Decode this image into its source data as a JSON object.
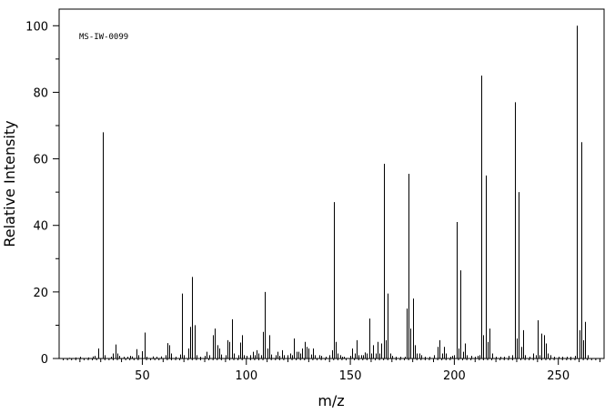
{
  "chart_data": {
    "type": "bar",
    "annotation": "MS-IW-0099",
    "xlabel": "m/z",
    "ylabel": "Relative Intensity",
    "xlim": [
      10,
      272
    ],
    "ylim": [
      0,
      105
    ],
    "x_ticks": [
      50,
      100,
      150,
      200,
      250
    ],
    "x_tick_labels": [
      "50",
      "100",
      "150",
      "200",
      "250"
    ],
    "y_ticks": [
      0,
      20,
      40,
      60,
      80,
      100
    ],
    "y_tick_labels": [
      "0",
      "20",
      "40",
      "60",
      "80",
      "100"
    ],
    "grid": false,
    "legend": "none",
    "peaks": [
      [
        15,
        0.2
      ],
      [
        18,
        0.3
      ],
      [
        20,
        0.5
      ],
      [
        24,
        0.3
      ],
      [
        26,
        0.6
      ],
      [
        27,
        0.8
      ],
      [
        29,
        3.0
      ],
      [
        31,
        68.0
      ],
      [
        32,
        1.0
      ],
      [
        35,
        0.5
      ],
      [
        36,
        1.5
      ],
      [
        37,
        4.2
      ],
      [
        38,
        1.5
      ],
      [
        39,
        0.8
      ],
      [
        41,
        0.5
      ],
      [
        43,
        0.5
      ],
      [
        44,
        0.8
      ],
      [
        45,
        0.6
      ],
      [
        47,
        2.8
      ],
      [
        48,
        1.0
      ],
      [
        50,
        2.2
      ],
      [
        51,
        7.8
      ],
      [
        52,
        0.5
      ],
      [
        55,
        0.6
      ],
      [
        57,
        0.5
      ],
      [
        59,
        0.6
      ],
      [
        61,
        1.0
      ],
      [
        62,
        4.6
      ],
      [
        63,
        4.0
      ],
      [
        64,
        1.5
      ],
      [
        66,
        0.5
      ],
      [
        68,
        1.2
      ],
      [
        69,
        19.5
      ],
      [
        70,
        1.0
      ],
      [
        72,
        3.0
      ],
      [
        73,
        9.5
      ],
      [
        74,
        24.5
      ],
      [
        75,
        10.0
      ],
      [
        76,
        1.0
      ],
      [
        78,
        0.5
      ],
      [
        80,
        0.8
      ],
      [
        81,
        2.0
      ],
      [
        82,
        1.0
      ],
      [
        84,
        7.0
      ],
      [
        85,
        9.0
      ],
      [
        86,
        4.0
      ],
      [
        87,
        3.0
      ],
      [
        88,
        1.2
      ],
      [
        90,
        1.0
      ],
      [
        91,
        5.5
      ],
      [
        92,
        5.0
      ],
      [
        93,
        11.8
      ],
      [
        94,
        1.5
      ],
      [
        96,
        1.0
      ],
      [
        97,
        4.8
      ],
      [
        98,
        7.0
      ],
      [
        99,
        1.0
      ],
      [
        100,
        0.8
      ],
      [
        102,
        1.0
      ],
      [
        103,
        2.0
      ],
      [
        104,
        1.0
      ],
      [
        105,
        2.5
      ],
      [
        106,
        1.5
      ],
      [
        107,
        1.0
      ],
      [
        108,
        8.0
      ],
      [
        109,
        20.0
      ],
      [
        110,
        3.0
      ],
      [
        111,
        7.0
      ],
      [
        112,
        1.2
      ],
      [
        114,
        1.0
      ],
      [
        115,
        2.0
      ],
      [
        116,
        0.8
      ],
      [
        117,
        2.5
      ],
      [
        118,
        1.0
      ],
      [
        120,
        1.0
      ],
      [
        121,
        1.5
      ],
      [
        122,
        1.0
      ],
      [
        123,
        6.0
      ],
      [
        124,
        2.0
      ],
      [
        125,
        2.0
      ],
      [
        126,
        1.5
      ],
      [
        127,
        3.0
      ],
      [
        128,
        5.0
      ],
      [
        129,
        3.5
      ],
      [
        130,
        3.0
      ],
      [
        131,
        1.2
      ],
      [
        132,
        3.0
      ],
      [
        133,
        1.0
      ],
      [
        135,
        1.0
      ],
      [
        136,
        0.8
      ],
      [
        138,
        0.5
      ],
      [
        140,
        1.0
      ],
      [
        141,
        2.5
      ],
      [
        142,
        47.0
      ],
      [
        143,
        5.0
      ],
      [
        144,
        1.5
      ],
      [
        145,
        1.0
      ],
      [
        146,
        0.5
      ],
      [
        147,
        0.5
      ],
      [
        150,
        0.8
      ],
      [
        151,
        3.0
      ],
      [
        152,
        1.5
      ],
      [
        153,
        5.5
      ],
      [
        154,
        1.0
      ],
      [
        155,
        1.0
      ],
      [
        156,
        1.0
      ],
      [
        157,
        1.8
      ],
      [
        158,
        1.5
      ],
      [
        159,
        12.0
      ],
      [
        160,
        1.5
      ],
      [
        161,
        4.0
      ],
      [
        162,
        1.5
      ],
      [
        163,
        5.0
      ],
      [
        164,
        1.5
      ],
      [
        165,
        4.5
      ],
      [
        166,
        58.5
      ],
      [
        167,
        5.5
      ],
      [
        168,
        19.5
      ],
      [
        169,
        1.5
      ],
      [
        170,
        0.8
      ],
      [
        172,
        0.5
      ],
      [
        174,
        0.5
      ],
      [
        176,
        0.5
      ],
      [
        177,
        15.0
      ],
      [
        178,
        55.5
      ],
      [
        179,
        9.0
      ],
      [
        180,
        18.0
      ],
      [
        181,
        4.0
      ],
      [
        182,
        1.5
      ],
      [
        183,
        1.5
      ],
      [
        184,
        1.0
      ],
      [
        186,
        0.5
      ],
      [
        188,
        0.5
      ],
      [
        190,
        1.0
      ],
      [
        192,
        3.5
      ],
      [
        193,
        5.5
      ],
      [
        194,
        1.5
      ],
      [
        195,
        3.5
      ],
      [
        196,
        1.5
      ],
      [
        198,
        0.5
      ],
      [
        199,
        0.8
      ],
      [
        200,
        1.0
      ],
      [
        201,
        41.0
      ],
      [
        202,
        3.0
      ],
      [
        203,
        26.5
      ],
      [
        204,
        2.0
      ],
      [
        205,
        4.5
      ],
      [
        206,
        1.0
      ],
      [
        208,
        0.8
      ],
      [
        210,
        0.5
      ],
      [
        211,
        0.8
      ],
      [
        212,
        1.0
      ],
      [
        213,
        85.0
      ],
      [
        214,
        7.0
      ],
      [
        215,
        55.0
      ],
      [
        216,
        5.0
      ],
      [
        217,
        9.0
      ],
      [
        218,
        1.5
      ],
      [
        220,
        0.5
      ],
      [
        222,
        0.5
      ],
      [
        224,
        0.5
      ],
      [
        226,
        0.8
      ],
      [
        228,
        1.0
      ],
      [
        229,
        77.0
      ],
      [
        230,
        6.0
      ],
      [
        231,
        50.0
      ],
      [
        232,
        3.5
      ],
      [
        233,
        8.5
      ],
      [
        234,
        1.0
      ],
      [
        236,
        0.5
      ],
      [
        238,
        1.5
      ],
      [
        239,
        1.0
      ],
      [
        240,
        11.5
      ],
      [
        241,
        1.0
      ],
      [
        242,
        7.5
      ],
      [
        243,
        7.0
      ],
      [
        244,
        4.5
      ],
      [
        245,
        1.5
      ],
      [
        246,
        1.0
      ],
      [
        248,
        0.5
      ],
      [
        250,
        0.5
      ],
      [
        252,
        0.5
      ],
      [
        254,
        0.5
      ],
      [
        256,
        0.5
      ],
      [
        258,
        0.8
      ],
      [
        259,
        100.0
      ],
      [
        260,
        8.5
      ],
      [
        261,
        65.0
      ],
      [
        262,
        5.5
      ],
      [
        263,
        11.0
      ],
      [
        264,
        1.0
      ]
    ]
  }
}
